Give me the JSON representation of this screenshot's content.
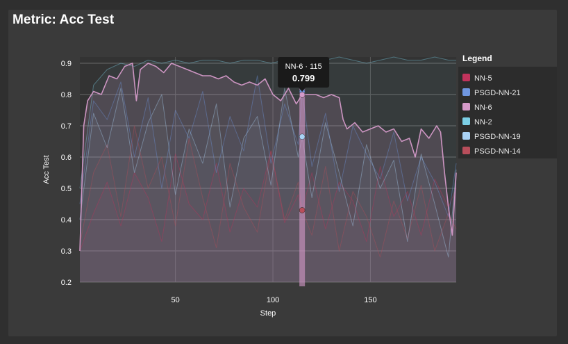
{
  "title": "Metric: Acc Test",
  "legend_title": "Legend",
  "tooltip": {
    "label": "NN-6 · 115",
    "value": "0.799"
  },
  "chart_data": {
    "type": "line",
    "xlabel": "Step",
    "ylabel": "Acc Test",
    "xlim": [
      1,
      194
    ],
    "ylim": [
      0.2,
      0.92
    ],
    "x_ticks": [
      50,
      100,
      150
    ],
    "y_ticks": [
      0.2,
      0.3,
      0.4,
      0.5,
      0.6,
      0.7,
      0.8,
      0.9
    ],
    "y_tick_labels": [
      "0.2",
      "0.3",
      "0.4",
      "0.5",
      "0.6",
      "0.7",
      "0.8",
      "0.9"
    ],
    "grid": true,
    "legend_position": "right",
    "hover_step": 115,
    "series": [
      {
        "name": "NN-5",
        "color": "#c2335c",
        "x": [
          1,
          8,
          15,
          22,
          29,
          36,
          43,
          50,
          57,
          64,
          71,
          78,
          85,
          92,
          99,
          106,
          113,
          115,
          120,
          127,
          134,
          141,
          148,
          155,
          162,
          169,
          176,
          183,
          190,
          194
        ],
        "values": [
          0.3,
          0.42,
          0.52,
          0.38,
          0.55,
          0.47,
          0.33,
          0.61,
          0.45,
          0.4,
          0.58,
          0.36,
          0.5,
          0.44,
          0.62,
          0.39,
          0.48,
          0.43,
          0.55,
          0.37,
          0.52,
          0.46,
          0.33,
          0.57,
          0.41,
          0.49,
          0.35,
          0.53,
          0.44,
          0.5
        ]
      },
      {
        "name": "PSGD-NN-21",
        "color": "#6f96e0",
        "x": [
          1,
          8,
          15,
          22,
          29,
          36,
          43,
          50,
          57,
          64,
          71,
          78,
          85,
          92,
          99,
          106,
          113,
          115,
          120,
          127,
          134,
          141,
          148,
          155,
          162,
          169,
          176,
          183,
          190,
          194
        ],
        "values": [
          0.45,
          0.78,
          0.72,
          0.84,
          0.6,
          0.79,
          0.5,
          0.75,
          0.66,
          0.81,
          0.55,
          0.73,
          0.62,
          0.86,
          0.58,
          0.77,
          0.64,
          0.81,
          0.57,
          0.74,
          0.49,
          0.7,
          0.61,
          0.53,
          0.68,
          0.46,
          0.6,
          0.52,
          0.41,
          0.58
        ]
      },
      {
        "name": "NN-6",
        "color": "#d59ac9",
        "x": [
          1,
          3,
          5,
          8,
          12,
          16,
          20,
          24,
          28,
          30,
          32,
          36,
          40,
          44,
          48,
          52,
          56,
          60,
          64,
          68,
          72,
          76,
          80,
          84,
          88,
          92,
          96,
          100,
          104,
          108,
          112,
          115,
          118,
          122,
          126,
          130,
          134,
          136,
          138,
          142,
          146,
          150,
          154,
          158,
          162,
          166,
          170,
          173,
          176,
          180,
          184,
          186,
          188,
          190,
          192,
          194
        ],
        "values": [
          0.3,
          0.7,
          0.78,
          0.81,
          0.8,
          0.86,
          0.85,
          0.89,
          0.9,
          0.78,
          0.88,
          0.9,
          0.89,
          0.87,
          0.9,
          0.89,
          0.88,
          0.87,
          0.86,
          0.86,
          0.85,
          0.86,
          0.84,
          0.83,
          0.84,
          0.83,
          0.85,
          0.8,
          0.78,
          0.82,
          0.77,
          0.799,
          0.8,
          0.8,
          0.79,
          0.8,
          0.79,
          0.72,
          0.69,
          0.71,
          0.68,
          0.69,
          0.7,
          0.68,
          0.69,
          0.65,
          0.66,
          0.6,
          0.69,
          0.66,
          0.7,
          0.68,
          0.55,
          0.44,
          0.35,
          0.55
        ]
      },
      {
        "name": "NN-2",
        "color": "#7ccfe6",
        "x": [
          1,
          8,
          15,
          22,
          29,
          36,
          43,
          50,
          57,
          64,
          71,
          78,
          85,
          92,
          99,
          106,
          113,
          115,
          120,
          127,
          134,
          141,
          148,
          155,
          162,
          169,
          176,
          183,
          190,
          194
        ],
        "values": [
          0.5,
          0.83,
          0.88,
          0.9,
          0.89,
          0.91,
          0.9,
          0.91,
          0.9,
          0.91,
          0.91,
          0.9,
          0.91,
          0.91,
          0.9,
          0.91,
          0.91,
          0.91,
          0.9,
          0.91,
          0.92,
          0.91,
          0.9,
          0.91,
          0.92,
          0.91,
          0.91,
          0.92,
          0.91,
          0.91
        ]
      },
      {
        "name": "PSGD-NN-19",
        "color": "#a9d2f5",
        "x": [
          1,
          8,
          15,
          22,
          29,
          36,
          43,
          50,
          57,
          64,
          71,
          78,
          85,
          92,
          99,
          106,
          113,
          115,
          120,
          127,
          134,
          141,
          148,
          155,
          162,
          169,
          176,
          183,
          190,
          194
        ],
        "values": [
          0.4,
          0.74,
          0.63,
          0.82,
          0.55,
          0.71,
          0.8,
          0.48,
          0.69,
          0.58,
          0.77,
          0.44,
          0.66,
          0.73,
          0.51,
          0.82,
          0.6,
          0.665,
          0.47,
          0.71,
          0.55,
          0.38,
          0.64,
          0.5,
          0.59,
          0.33,
          0.61,
          0.45,
          0.28,
          0.56
        ]
      },
      {
        "name": "PSGD-NN-14",
        "color": "#b84e5b",
        "x": [
          1,
          8,
          15,
          22,
          29,
          36,
          43,
          50,
          57,
          64,
          71,
          78,
          85,
          92,
          99,
          106,
          113,
          115,
          120,
          127,
          134,
          141,
          148,
          155,
          162,
          169,
          176,
          183,
          190,
          194
        ],
        "values": [
          0.32,
          0.55,
          0.64,
          0.41,
          0.7,
          0.5,
          0.6,
          0.38,
          0.66,
          0.47,
          0.31,
          0.58,
          0.44,
          0.36,
          0.62,
          0.4,
          0.52,
          0.43,
          0.35,
          0.57,
          0.3,
          0.49,
          0.41,
          0.28,
          0.46,
          0.34,
          0.51,
          0.3,
          0.42,
          0.37
        ]
      }
    ]
  }
}
